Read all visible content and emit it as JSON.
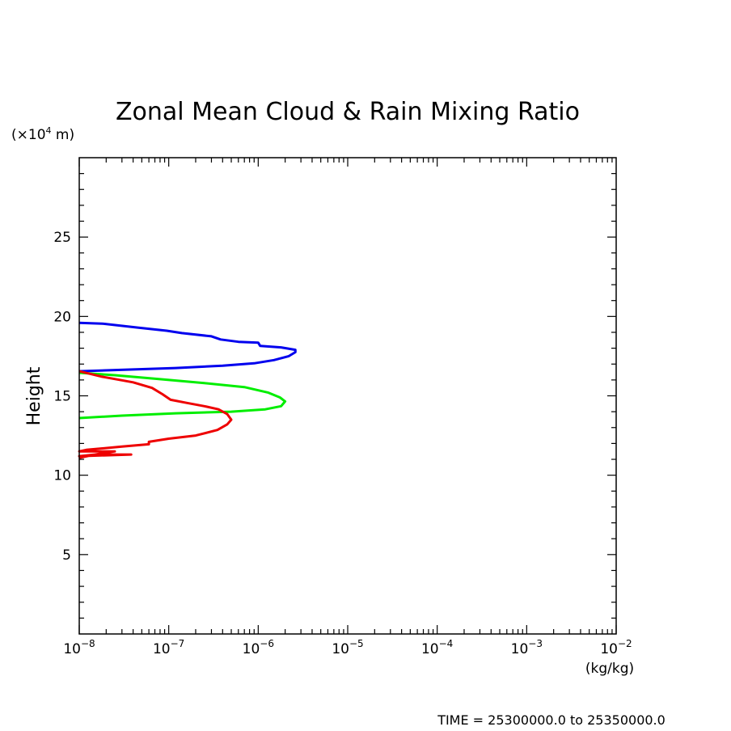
{
  "chart_data": {
    "type": "line",
    "title": "Zonal Mean Cloud & Rain Mixing Ratio",
    "xlabel": "",
    "x_unit": "(kg/kg)",
    "ylabel": "Height",
    "y_unit_prefix": "(×10",
    "y_unit_exp": "4",
    "y_unit_suffix": " m)",
    "footer": "TIME = 25300000.0 to 25350000.0",
    "xscale": "log",
    "xlim": [
      1e-08,
      0.01
    ],
    "ylim": [
      0,
      30
    ],
    "grid": false,
    "x_ticks": [
      {
        "value": 1e-08,
        "base": "10",
        "exp": "−8"
      },
      {
        "value": 1e-07,
        "base": "10",
        "exp": "−7"
      },
      {
        "value": 1e-06,
        "base": "10",
        "exp": "−6"
      },
      {
        "value": 1e-05,
        "base": "10",
        "exp": "−5"
      },
      {
        "value": 0.0001,
        "base": "10",
        "exp": "−4"
      },
      {
        "value": 0.001,
        "base": "10",
        "exp": "−3"
      },
      {
        "value": 0.01,
        "base": "10",
        "exp": "−2"
      }
    ],
    "y_ticks": [
      {
        "value": 5,
        "label": "5"
      },
      {
        "value": 10,
        "label": "10"
      },
      {
        "value": 15,
        "label": "15"
      },
      {
        "value": 20,
        "label": "20"
      },
      {
        "value": 25,
        "label": "25"
      }
    ],
    "series": [
      {
        "color": "#0000ee",
        "points": [
          [
            1e-08,
            19.6
          ],
          [
            1.8e-08,
            19.55
          ],
          [
            4.5e-08,
            19.3
          ],
          [
            9.5e-08,
            19.1
          ],
          [
            1.4e-07,
            18.95
          ],
          [
            3e-07,
            18.75
          ],
          [
            3.8e-07,
            18.55
          ],
          [
            6e-07,
            18.4
          ],
          [
            1e-06,
            18.35
          ],
          [
            1.05e-06,
            18.15
          ],
          [
            1.8e-06,
            18.05
          ],
          [
            2.6e-06,
            17.9
          ],
          [
            2.6e-06,
            17.75
          ],
          [
            2.2e-06,
            17.5
          ],
          [
            1.5e-06,
            17.25
          ],
          [
            9e-07,
            17.05
          ],
          [
            4e-07,
            16.9
          ],
          [
            1.2e-07,
            16.75
          ],
          [
            1e-08,
            16.55
          ]
        ]
      },
      {
        "color": "#00ee00",
        "points": [
          [
            1e-08,
            16.45
          ],
          [
            2.5e-08,
            16.3
          ],
          [
            8e-08,
            16.05
          ],
          [
            2.5e-07,
            15.8
          ],
          [
            7e-07,
            15.55
          ],
          [
            1.3e-06,
            15.2
          ],
          [
            1.75e-06,
            14.9
          ],
          [
            2e-06,
            14.65
          ],
          [
            1.8e-06,
            14.35
          ],
          [
            1.2e-06,
            14.15
          ],
          [
            5e-07,
            14.0
          ],
          [
            1.2e-07,
            13.9
          ],
          [
            3e-08,
            13.75
          ],
          [
            1e-08,
            13.6
          ]
        ]
      },
      {
        "color": "#ee0000",
        "points": [
          [
            1e-08,
            16.55
          ],
          [
            1.8e-08,
            16.2
          ],
          [
            4e-08,
            15.85
          ],
          [
            6.5e-08,
            15.5
          ],
          [
            8.5e-08,
            15.1
          ],
          [
            1.05e-07,
            14.75
          ],
          [
            1.6e-07,
            14.55
          ],
          [
            2.5e-07,
            14.35
          ],
          [
            3.6e-07,
            14.15
          ],
          [
            4.5e-07,
            13.85
          ],
          [
            5e-07,
            13.5
          ],
          [
            4.5e-07,
            13.2
          ],
          [
            3.5e-07,
            12.85
          ],
          [
            2e-07,
            12.5
          ],
          [
            1e-07,
            12.3
          ],
          [
            6e-08,
            12.1
          ],
          [
            6e-08,
            11.95
          ],
          [
            3e-08,
            11.8
          ],
          [
            1.2e-08,
            11.6
          ],
          [
            1e-08,
            11.5
          ],
          [
            2.5e-08,
            11.5
          ],
          [
            1.5e-08,
            11.3
          ],
          [
            1e-08,
            11.2
          ],
          [
            3.8e-08,
            11.3
          ],
          [
            1.5e-08,
            11.3
          ],
          [
            1e-08,
            11.1
          ]
        ]
      }
    ]
  }
}
